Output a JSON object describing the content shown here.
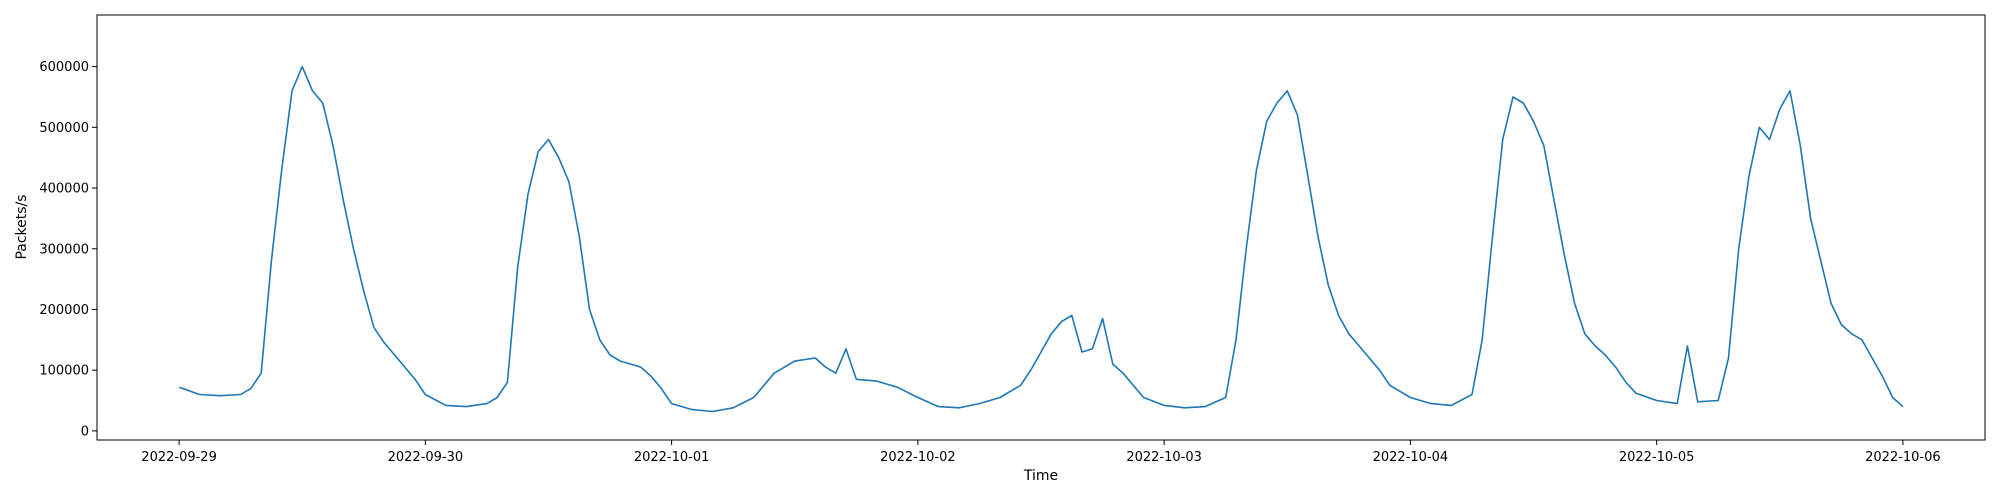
{
  "chart_data": {
    "type": "line",
    "title": "",
    "xlabel": "Time",
    "ylabel": "Packets/s",
    "x_unit": "date",
    "xlim": [
      "2022-09-28T16:00",
      "2022-10-06T08:00"
    ],
    "ylim": [
      -15000,
      685000
    ],
    "grid": false,
    "legend": "none",
    "x_ticks": [
      "2022-09-29",
      "2022-09-30",
      "2022-10-01",
      "2022-10-02",
      "2022-10-03",
      "2022-10-04",
      "2022-10-05",
      "2022-10-06"
    ],
    "y_ticks": [
      0,
      100000,
      200000,
      300000,
      400000,
      500000,
      600000
    ],
    "y_tick_labels": [
      "0",
      "100000",
      "200000",
      "300000",
      "400000",
      "500000",
      "600000"
    ],
    "series": [
      {
        "color": "#1f77b4",
        "points": [
          [
            "2022-09-29T00:00",
            72000
          ],
          [
            "2022-09-29T02:00",
            60000
          ],
          [
            "2022-09-29T04:00",
            58000
          ],
          [
            "2022-09-29T06:00",
            60000
          ],
          [
            "2022-09-29T07:00",
            70000
          ],
          [
            "2022-09-29T08:00",
            95000
          ],
          [
            "2022-09-29T09:00",
            280000
          ],
          [
            "2022-09-29T10:00",
            430000
          ],
          [
            "2022-09-29T11:00",
            560000
          ],
          [
            "2022-09-29T12:00",
            600000
          ],
          [
            "2022-09-29T13:00",
            560000
          ],
          [
            "2022-09-29T14:00",
            540000
          ],
          [
            "2022-09-29T15:00",
            470000
          ],
          [
            "2022-09-29T16:00",
            380000
          ],
          [
            "2022-09-29T17:00",
            300000
          ],
          [
            "2022-09-29T18:00",
            230000
          ],
          [
            "2022-09-29T19:00",
            170000
          ],
          [
            "2022-09-29T20:00",
            145000
          ],
          [
            "2022-09-29T21:00",
            125000
          ],
          [
            "2022-09-29T22:00",
            105000
          ],
          [
            "2022-09-29T23:00",
            85000
          ],
          [
            "2022-09-30T00:00",
            60000
          ],
          [
            "2022-09-30T02:00",
            42000
          ],
          [
            "2022-09-30T04:00",
            40000
          ],
          [
            "2022-09-30T06:00",
            45000
          ],
          [
            "2022-09-30T07:00",
            55000
          ],
          [
            "2022-09-30T08:00",
            80000
          ],
          [
            "2022-09-30T09:00",
            270000
          ],
          [
            "2022-09-30T10:00",
            390000
          ],
          [
            "2022-09-30T11:00",
            460000
          ],
          [
            "2022-09-30T12:00",
            480000
          ],
          [
            "2022-09-30T13:00",
            450000
          ],
          [
            "2022-09-30T14:00",
            410000
          ],
          [
            "2022-09-30T15:00",
            320000
          ],
          [
            "2022-09-30T16:00",
            200000
          ],
          [
            "2022-09-30T17:00",
            150000
          ],
          [
            "2022-09-30T18:00",
            125000
          ],
          [
            "2022-09-30T19:00",
            115000
          ],
          [
            "2022-09-30T20:00",
            110000
          ],
          [
            "2022-09-30T21:00",
            105000
          ],
          [
            "2022-09-30T22:00",
            90000
          ],
          [
            "2022-09-30T23:00",
            70000
          ],
          [
            "2022-10-01T00:00",
            45000
          ],
          [
            "2022-10-01T02:00",
            35000
          ],
          [
            "2022-10-01T04:00",
            32000
          ],
          [
            "2022-10-01T06:00",
            38000
          ],
          [
            "2022-10-01T08:00",
            55000
          ],
          [
            "2022-10-01T10:00",
            95000
          ],
          [
            "2022-10-01T12:00",
            115000
          ],
          [
            "2022-10-01T14:00",
            120000
          ],
          [
            "2022-10-01T15:00",
            105000
          ],
          [
            "2022-10-01T16:00",
            95000
          ],
          [
            "2022-10-01T17:00",
            135000
          ],
          [
            "2022-10-01T18:00",
            85000
          ],
          [
            "2022-10-01T20:00",
            82000
          ],
          [
            "2022-10-01T22:00",
            72000
          ],
          [
            "2022-10-02T00:00",
            55000
          ],
          [
            "2022-10-02T02:00",
            40000
          ],
          [
            "2022-10-02T04:00",
            38000
          ],
          [
            "2022-10-02T06:00",
            45000
          ],
          [
            "2022-10-02T08:00",
            55000
          ],
          [
            "2022-10-02T10:00",
            75000
          ],
          [
            "2022-10-02T11:00",
            100000
          ],
          [
            "2022-10-02T12:00",
            130000
          ],
          [
            "2022-10-02T13:00",
            160000
          ],
          [
            "2022-10-02T14:00",
            180000
          ],
          [
            "2022-10-02T15:00",
            190000
          ],
          [
            "2022-10-02T16:00",
            130000
          ],
          [
            "2022-10-02T17:00",
            135000
          ],
          [
            "2022-10-02T18:00",
            185000
          ],
          [
            "2022-10-02T19:00",
            110000
          ],
          [
            "2022-10-02T20:00",
            95000
          ],
          [
            "2022-10-02T21:00",
            75000
          ],
          [
            "2022-10-02T22:00",
            55000
          ],
          [
            "2022-10-03T00:00",
            42000
          ],
          [
            "2022-10-03T02:00",
            38000
          ],
          [
            "2022-10-03T04:00",
            40000
          ],
          [
            "2022-10-03T06:00",
            55000
          ],
          [
            "2022-10-03T07:00",
            150000
          ],
          [
            "2022-10-03T08:00",
            300000
          ],
          [
            "2022-10-03T09:00",
            430000
          ],
          [
            "2022-10-03T10:00",
            510000
          ],
          [
            "2022-10-03T11:00",
            540000
          ],
          [
            "2022-10-03T12:00",
            560000
          ],
          [
            "2022-10-03T13:00",
            520000
          ],
          [
            "2022-10-03T14:00",
            420000
          ],
          [
            "2022-10-03T15:00",
            320000
          ],
          [
            "2022-10-03T16:00",
            240000
          ],
          [
            "2022-10-03T17:00",
            190000
          ],
          [
            "2022-10-03T18:00",
            160000
          ],
          [
            "2022-10-03T19:00",
            140000
          ],
          [
            "2022-10-03T20:00",
            120000
          ],
          [
            "2022-10-03T21:00",
            100000
          ],
          [
            "2022-10-03T22:00",
            75000
          ],
          [
            "2022-10-04T00:00",
            55000
          ],
          [
            "2022-10-04T02:00",
            45000
          ],
          [
            "2022-10-04T04:00",
            42000
          ],
          [
            "2022-10-04T06:00",
            60000
          ],
          [
            "2022-10-04T07:00",
            150000
          ],
          [
            "2022-10-04T08:00",
            320000
          ],
          [
            "2022-10-04T09:00",
            480000
          ],
          [
            "2022-10-04T10:00",
            550000
          ],
          [
            "2022-10-04T11:00",
            540000
          ],
          [
            "2022-10-04T12:00",
            510000
          ],
          [
            "2022-10-04T13:00",
            470000
          ],
          [
            "2022-10-04T14:00",
            380000
          ],
          [
            "2022-10-04T15:00",
            290000
          ],
          [
            "2022-10-04T16:00",
            210000
          ],
          [
            "2022-10-04T17:00",
            160000
          ],
          [
            "2022-10-04T18:00",
            140000
          ],
          [
            "2022-10-04T19:00",
            125000
          ],
          [
            "2022-10-04T20:00",
            105000
          ],
          [
            "2022-10-04T21:00",
            80000
          ],
          [
            "2022-10-04T22:00",
            62000
          ],
          [
            "2022-10-05T00:00",
            50000
          ],
          [
            "2022-10-05T02:00",
            45000
          ],
          [
            "2022-10-05T03:00",
            140000
          ],
          [
            "2022-10-05T04:00",
            48000
          ],
          [
            "2022-10-05T06:00",
            50000
          ],
          [
            "2022-10-05T07:00",
            120000
          ],
          [
            "2022-10-05T08:00",
            300000
          ],
          [
            "2022-10-05T09:00",
            420000
          ],
          [
            "2022-10-05T10:00",
            500000
          ],
          [
            "2022-10-05T11:00",
            480000
          ],
          [
            "2022-10-05T12:00",
            530000
          ],
          [
            "2022-10-05T13:00",
            560000
          ],
          [
            "2022-10-05T14:00",
            470000
          ],
          [
            "2022-10-05T15:00",
            350000
          ],
          [
            "2022-10-05T16:00",
            280000
          ],
          [
            "2022-10-05T17:00",
            210000
          ],
          [
            "2022-10-05T18:00",
            175000
          ],
          [
            "2022-10-05T19:00",
            160000
          ],
          [
            "2022-10-05T20:00",
            150000
          ],
          [
            "2022-10-05T21:00",
            120000
          ],
          [
            "2022-10-05T22:00",
            90000
          ],
          [
            "2022-10-05T23:00",
            55000
          ],
          [
            "2022-10-06T00:00",
            40000
          ]
        ]
      }
    ]
  }
}
